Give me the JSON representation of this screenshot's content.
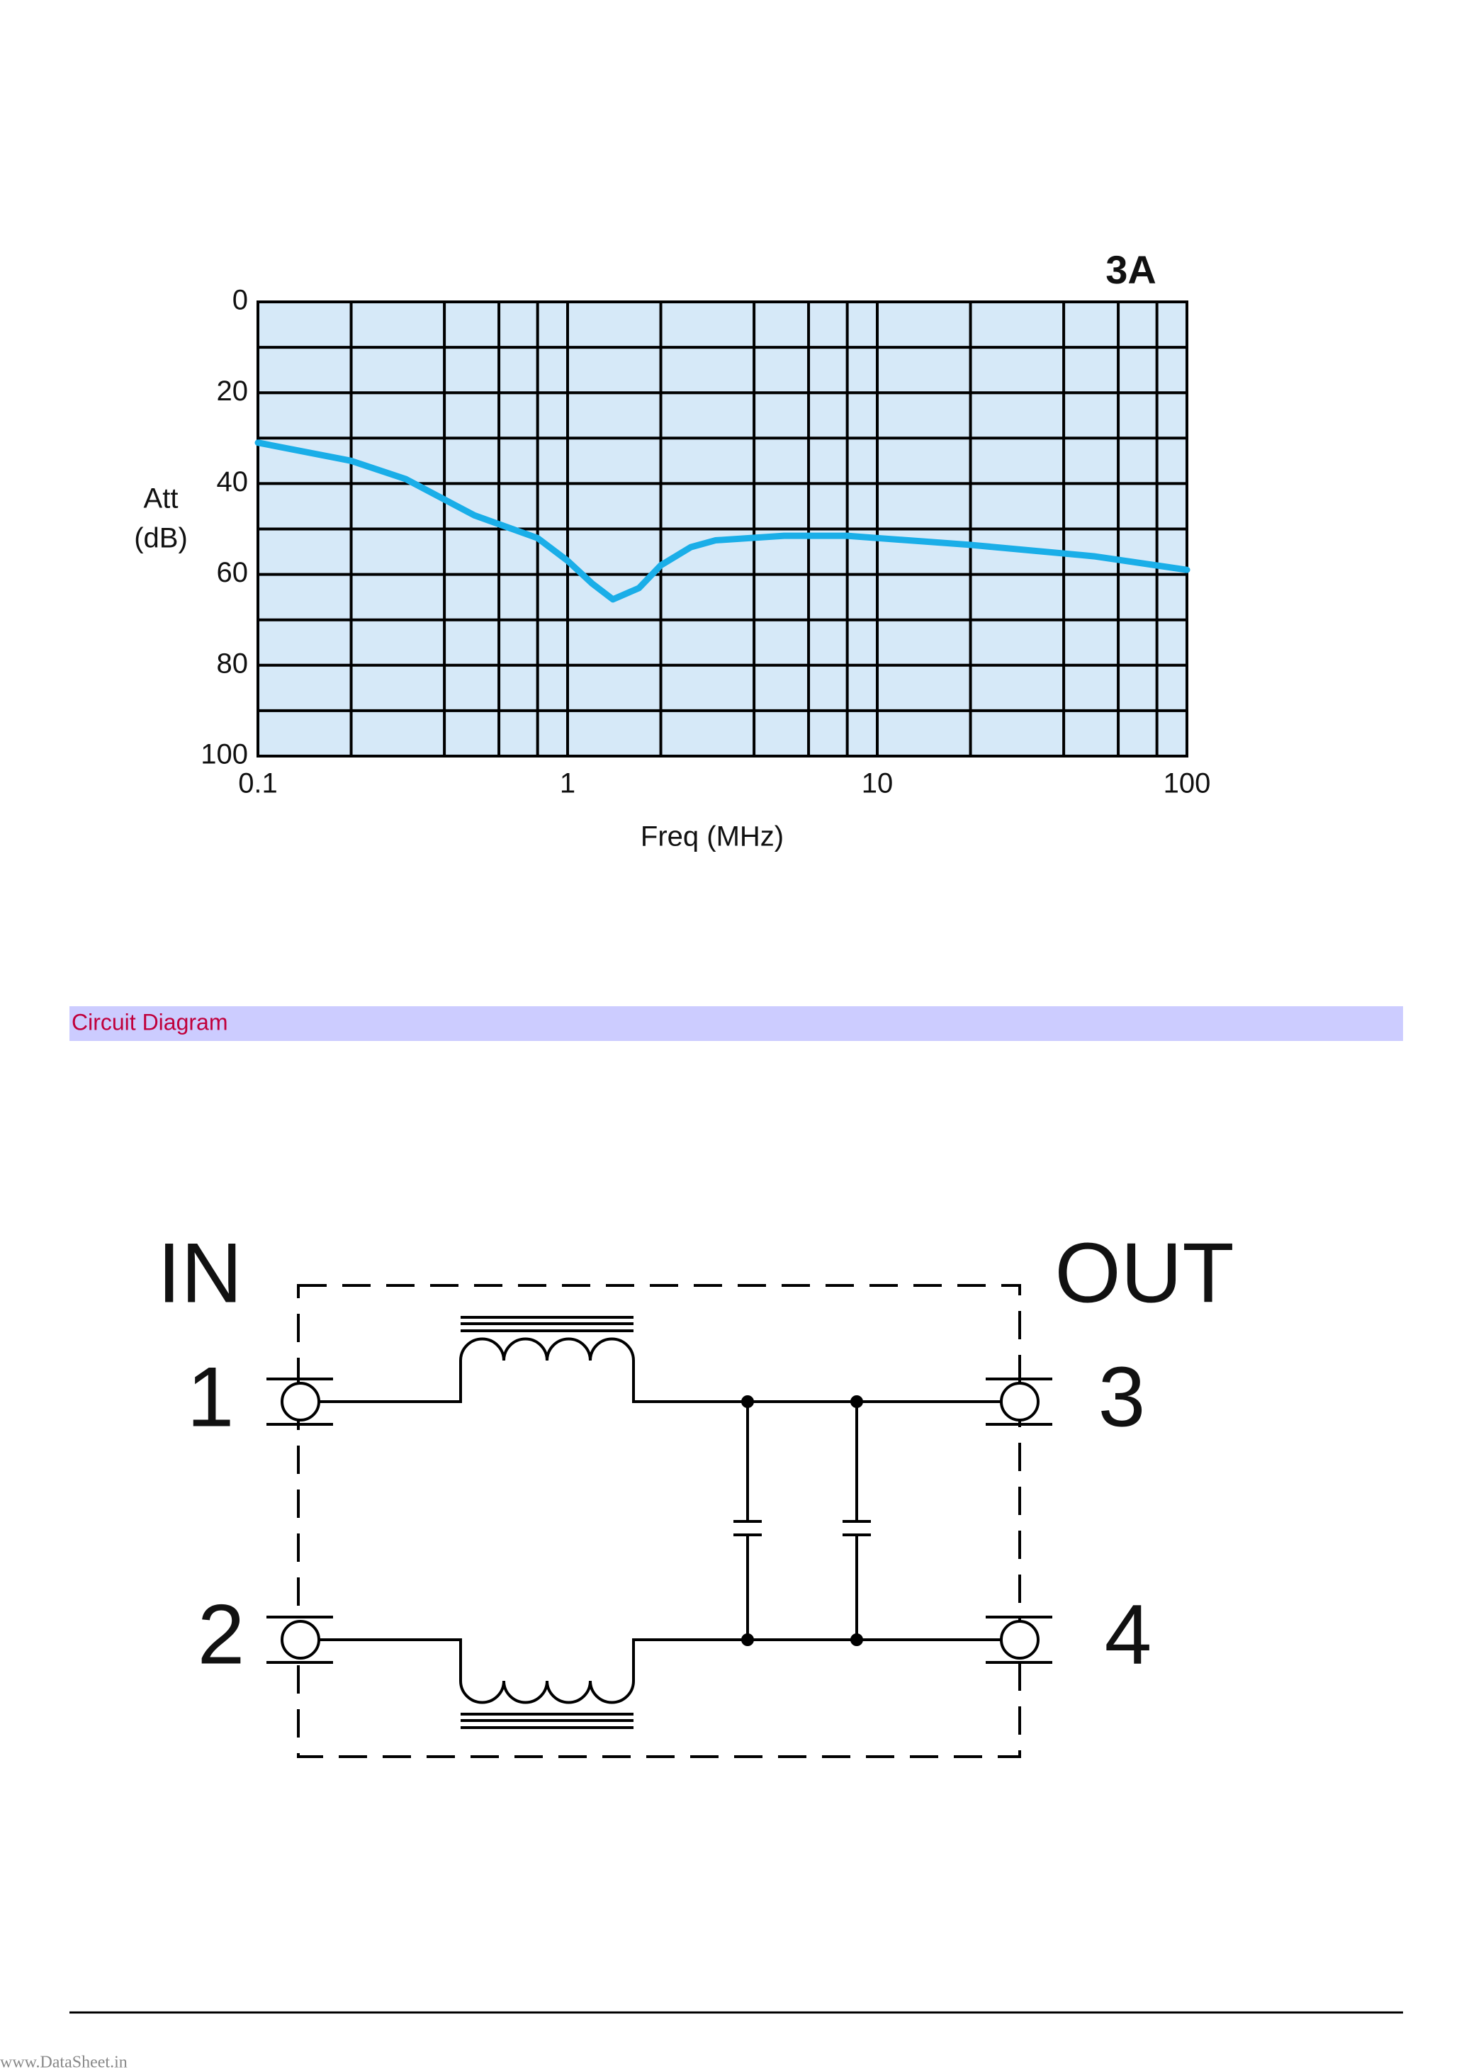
{
  "chart_data": {
    "type": "line",
    "title": "3A",
    "ylabel": [
      "Att",
      "(dB)"
    ],
    "xlabel": "Freq (MHz)",
    "xscale": "log",
    "xlim": [
      0.1,
      100
    ],
    "xticks": [
      0.1,
      1,
      10,
      100
    ],
    "x_minor_grid": [
      0.2,
      0.4,
      0.6,
      0.8,
      2,
      4,
      6,
      8,
      20,
      40,
      60,
      80
    ],
    "ylim": [
      100,
      0
    ],
    "yticks": [
      0,
      20,
      40,
      60,
      80,
      100
    ],
    "y_minor_grid": [
      10,
      30,
      50,
      70,
      90
    ],
    "grid": true,
    "background": "#d6e9f8",
    "series": [
      {
        "name": "3A",
        "color": "#1aaee8",
        "x": [
          0.1,
          0.2,
          0.3,
          0.5,
          0.8,
          1.0,
          1.2,
          1.4,
          1.7,
          2.0,
          2.5,
          3,
          5,
          8,
          10,
          20,
          50,
          100
        ],
        "values": [
          31,
          35,
          39,
          47,
          52,
          57,
          62,
          65.5,
          63,
          58,
          54,
          52.5,
          51.5,
          51.5,
          52,
          53.5,
          56,
          59
        ]
      }
    ]
  },
  "section": {
    "title": "Circuit Diagram"
  },
  "circuit": {
    "input_label": "IN",
    "output_label": "OUT",
    "terminals": [
      "1",
      "2",
      "3",
      "4"
    ]
  },
  "footer": {
    "watermark": "www.DataSheet.in"
  }
}
